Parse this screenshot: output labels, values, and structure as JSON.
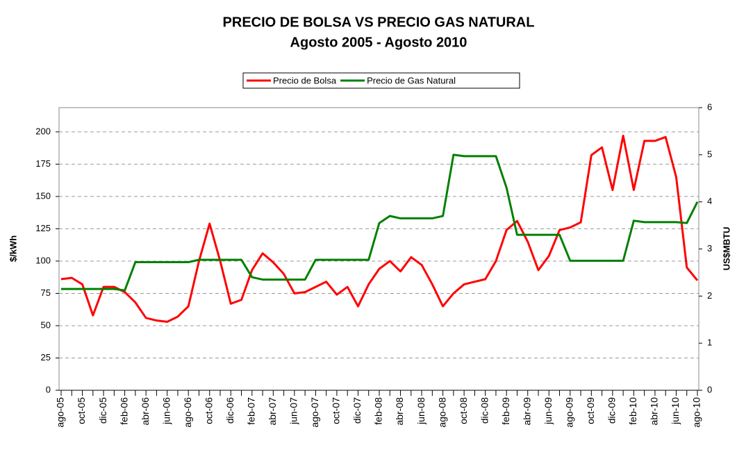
{
  "chart_data": {
    "type": "line",
    "title": "PRECIO DE BOLSA VS PRECIO GAS NATURAL",
    "subtitle": "Agosto 2005 - Agosto 2010",
    "y_label": "$/kWh",
    "y2_label": "US$MBTU",
    "categories": [
      "ago-05",
      null,
      "oct-05",
      null,
      "dic-05",
      null,
      "feb-06",
      null,
      "abr-06",
      null,
      "jun-06",
      null,
      "ago-06",
      null,
      "oct-06",
      null,
      "dic-06",
      null,
      "feb-07",
      null,
      "abr-07",
      null,
      "jun-07",
      null,
      "ago-07",
      null,
      "oct-07",
      null,
      "dic-07",
      null,
      "feb-08",
      null,
      "abr-08",
      null,
      "jun-08",
      null,
      "ago-08",
      null,
      "oct-08",
      null,
      "dic-08",
      null,
      "feb-09",
      null,
      "abr-09",
      null,
      "jun-09",
      null,
      "ago-09",
      null,
      "oct-09",
      null,
      "dic-09",
      null,
      "feb-10",
      null,
      "abr-10",
      null,
      "jun-10",
      null,
      "ago-10"
    ],
    "series": [
      {
        "name": "Precio de Bolsa",
        "color": "#ff0000",
        "values": [
          86,
          87,
          82,
          58,
          80,
          80,
          76,
          68,
          56,
          54,
          53,
          57,
          65,
          100,
          129,
          100,
          67,
          70,
          93,
          106,
          99,
          90,
          75,
          76,
          80,
          84,
          74,
          80,
          65,
          82,
          94,
          100,
          92,
          103,
          97,
          82,
          65,
          75,
          82,
          84,
          86,
          100,
          124,
          131,
          115,
          93,
          104,
          124,
          126,
          130,
          182,
          188,
          155,
          197,
          155,
          193,
          193,
          196,
          165,
          95,
          85
        ]
      },
      {
        "name": "Precio de Gas Natural",
        "color": "#008000",
        "axis": "y2",
        "values": [
          2.15,
          2.15,
          2.15,
          2.15,
          2.15,
          2.15,
          2.12,
          2.72,
          2.72,
          2.72,
          2.72,
          2.72,
          2.72,
          2.77,
          2.77,
          2.77,
          2.77,
          2.77,
          2.4,
          2.35,
          2.35,
          2.35,
          2.35,
          2.35,
          2.77,
          2.77,
          2.77,
          2.77,
          2.77,
          2.77,
          3.55,
          3.7,
          3.65,
          3.65,
          3.65,
          3.65,
          3.7,
          5.0,
          4.97,
          4.97,
          4.97,
          4.97,
          4.3,
          3.3,
          3.3,
          3.3,
          3.3,
          3.3,
          2.75,
          2.75,
          2.75,
          2.75,
          2.75,
          2.75,
          3.6,
          3.57,
          3.57,
          3.57,
          3.57,
          3.55,
          4.0
        ]
      }
    ],
    "ylim": [
      0,
      218.75
    ],
    "yticks": [
      0,
      25,
      50,
      75,
      100,
      125,
      150,
      175,
      200
    ],
    "y2lim": [
      0,
      6
    ],
    "y2ticks": [
      0,
      1,
      2,
      3,
      4,
      5,
      6
    ],
    "grid": true,
    "legend": "top"
  }
}
